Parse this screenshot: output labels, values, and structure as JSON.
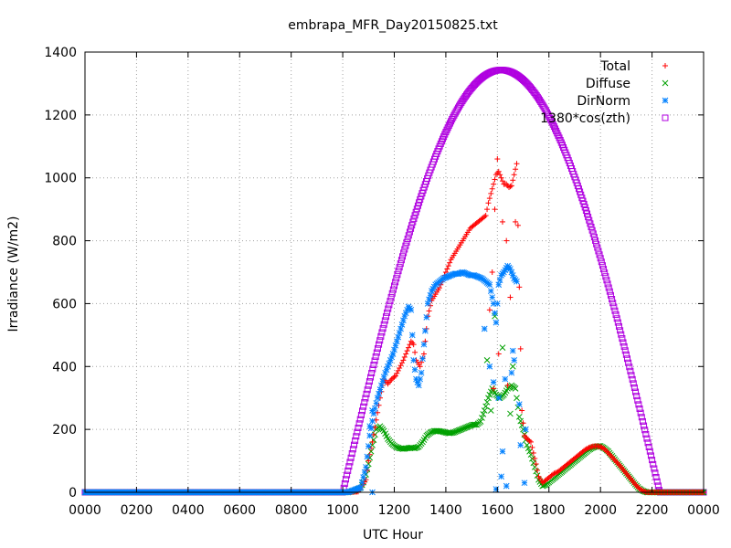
{
  "chart_data": {
    "type": "scatter",
    "title": "embrapa_MFR_Day20150825.txt",
    "xlabel": "UTC Hour",
    "ylabel": "Irradiance (W/m2)",
    "xlim": [
      0,
      24
    ],
    "ylim": [
      0,
      1400
    ],
    "x_ticks": [
      "0000",
      "0200",
      "0400",
      "0600",
      "0800",
      "1000",
      "1200",
      "1400",
      "1600",
      "1800",
      "2000",
      "2200",
      "0000"
    ],
    "y_ticks": [
      "0",
      "200",
      "400",
      "600",
      "800",
      "1000",
      "1200",
      "1400"
    ],
    "grid": true,
    "legend_position": "top-right",
    "series": [
      {
        "name": "Total",
        "marker": "plus",
        "color": "#ff0000",
        "points": [
          [
            0,
            0
          ],
          [
            10.2,
            0
          ],
          [
            10.6,
            2
          ],
          [
            10.9,
            40
          ],
          [
            11.0,
            100
          ],
          [
            11.15,
            160
          ],
          [
            11.3,
            230
          ],
          [
            11.45,
            300
          ],
          [
            11.6,
            360
          ],
          [
            11.75,
            345
          ],
          [
            11.9,
            360
          ],
          [
            12.05,
            370
          ],
          [
            12.2,
            395
          ],
          [
            12.35,
            420
          ],
          [
            12.5,
            450
          ],
          [
            12.65,
            480
          ],
          [
            12.75,
            470
          ],
          [
            12.85,
            420
          ],
          [
            13.0,
            400
          ],
          [
            13.15,
            440
          ],
          [
            13.3,
            560
          ],
          [
            13.45,
            610
          ],
          [
            13.6,
            630
          ],
          [
            13.75,
            650
          ],
          [
            13.9,
            680
          ],
          [
            14.05,
            710
          ],
          [
            14.2,
            740
          ],
          [
            14.35,
            760
          ],
          [
            14.5,
            780
          ],
          [
            14.65,
            800
          ],
          [
            14.8,
            820
          ],
          [
            14.95,
            840
          ],
          [
            15.1,
            850
          ],
          [
            15.25,
            860
          ],
          [
            15.4,
            870
          ],
          [
            15.55,
            880
          ],
          [
            15.65,
            920
          ],
          [
            15.75,
            950
          ],
          [
            15.85,
            980
          ],
          [
            15.95,
            1010
          ],
          [
            16.05,
            1020
          ],
          [
            16.15,
            1000
          ],
          [
            16.25,
            980
          ],
          [
            16.35,
            980
          ],
          [
            16.45,
            970
          ],
          [
            16.55,
            975
          ],
          [
            16.75,
            1045
          ],
          [
            16.95,
            260
          ],
          [
            17.05,
            180
          ],
          [
            17.15,
            170
          ],
          [
            17.3,
            160
          ],
          [
            17.5,
            90
          ],
          [
            17.6,
            50
          ],
          [
            17.75,
            30
          ],
          [
            17.9,
            40
          ],
          [
            18.05,
            50
          ],
          [
            18.2,
            60
          ],
          [
            18.35,
            65
          ],
          [
            18.5,
            75
          ],
          [
            18.65,
            85
          ],
          [
            18.8,
            95
          ],
          [
            18.95,
            105
          ],
          [
            19.1,
            115
          ],
          [
            19.25,
            125
          ],
          [
            19.4,
            135
          ],
          [
            19.55,
            142
          ],
          [
            19.7,
            146
          ],
          [
            19.85,
            147
          ],
          [
            20.0,
            145
          ],
          [
            20.15,
            138
          ],
          [
            20.3,
            125
          ],
          [
            20.45,
            112
          ],
          [
            20.6,
            98
          ],
          [
            20.75,
            85
          ],
          [
            20.9,
            70
          ],
          [
            21.05,
            55
          ],
          [
            21.2,
            40
          ],
          [
            21.35,
            25
          ],
          [
            21.5,
            12
          ],
          [
            21.65,
            4
          ],
          [
            21.8,
            0
          ],
          [
            24,
            0
          ]
        ],
        "outliers": [
          [
            16.0,
            1060
          ],
          [
            15.9,
            900
          ],
          [
            15.8,
            700
          ],
          [
            16.2,
            860
          ],
          [
            16.35,
            800
          ],
          [
            15.7,
            580
          ],
          [
            16.05,
            440
          ],
          [
            16.5,
            620
          ],
          [
            16.4,
            340
          ],
          [
            16.7,
            860
          ],
          [
            15.85,
            330
          ]
        ]
      },
      {
        "name": "Diffuse",
        "marker": "cross",
        "color": "#00a000",
        "points": [
          [
            0,
            0
          ],
          [
            10.2,
            0
          ],
          [
            10.5,
            5
          ],
          [
            10.7,
            15
          ],
          [
            10.85,
            40
          ],
          [
            11.0,
            90
          ],
          [
            11.15,
            150
          ],
          [
            11.3,
            200
          ],
          [
            11.45,
            210
          ],
          [
            11.6,
            195
          ],
          [
            11.75,
            170
          ],
          [
            11.9,
            155
          ],
          [
            12.05,
            145
          ],
          [
            12.2,
            140
          ],
          [
            12.35,
            138
          ],
          [
            12.5,
            140
          ],
          [
            12.65,
            142
          ],
          [
            12.8,
            140
          ],
          [
            12.95,
            145
          ],
          [
            13.1,
            160
          ],
          [
            13.25,
            180
          ],
          [
            13.4,
            190
          ],
          [
            13.55,
            195
          ],
          [
            13.7,
            195
          ],
          [
            13.85,
            193
          ],
          [
            14.0,
            190
          ],
          [
            14.15,
            188
          ],
          [
            14.3,
            190
          ],
          [
            14.45,
            195
          ],
          [
            14.6,
            200
          ],
          [
            14.75,
            205
          ],
          [
            14.9,
            210
          ],
          [
            15.05,
            215
          ],
          [
            15.2,
            215
          ],
          [
            15.35,
            225
          ],
          [
            15.5,
            260
          ],
          [
            15.65,
            300
          ],
          [
            15.8,
            330
          ],
          [
            15.95,
            310
          ],
          [
            16.1,
            300
          ],
          [
            16.25,
            310
          ],
          [
            16.4,
            330
          ],
          [
            16.55,
            340
          ],
          [
            16.7,
            330
          ],
          [
            16.85,
            240
          ],
          [
            17.0,
            200
          ],
          [
            17.15,
            150
          ],
          [
            17.3,
            120
          ],
          [
            17.45,
            80
          ],
          [
            17.6,
            40
          ],
          [
            17.75,
            20
          ],
          [
            17.9,
            25
          ],
          [
            18.05,
            35
          ],
          [
            18.2,
            45
          ],
          [
            18.35,
            55
          ],
          [
            18.5,
            65
          ],
          [
            18.65,
            75
          ],
          [
            18.8,
            85
          ],
          [
            18.95,
            95
          ],
          [
            19.1,
            105
          ],
          [
            19.25,
            115
          ],
          [
            19.4,
            125
          ],
          [
            19.55,
            135
          ],
          [
            19.7,
            142
          ],
          [
            19.85,
            146
          ],
          [
            20.0,
            147
          ],
          [
            20.15,
            140
          ],
          [
            20.3,
            130
          ],
          [
            20.45,
            115
          ],
          [
            20.6,
            100
          ],
          [
            20.75,
            85
          ],
          [
            20.9,
            70
          ],
          [
            21.05,
            55
          ],
          [
            21.2,
            40
          ],
          [
            21.35,
            25
          ],
          [
            21.5,
            12
          ],
          [
            21.65,
            4
          ],
          [
            21.8,
            0
          ],
          [
            24,
            0
          ]
        ],
        "outliers": [
          [
            15.6,
            420
          ],
          [
            15.9,
            560
          ],
          [
            16.2,
            460
          ],
          [
            16.6,
            400
          ],
          [
            16.5,
            250
          ],
          [
            15.75,
            260
          ]
        ]
      },
      {
        "name": "DirNorm",
        "marker": "star",
        "color": "#0080ff",
        "points": [
          [
            0,
            0
          ],
          [
            10.2,
            0
          ],
          [
            10.7,
            15
          ],
          [
            10.9,
            80
          ],
          [
            11.05,
            180
          ],
          [
            11.2,
            250
          ],
          [
            11.35,
            300
          ],
          [
            11.5,
            340
          ],
          [
            11.65,
            380
          ],
          [
            11.8,
            410
          ],
          [
            11.95,
            440
          ],
          [
            12.1,
            480
          ],
          [
            12.25,
            520
          ],
          [
            12.4,
            560
          ],
          [
            12.55,
            590
          ],
          [
            12.65,
            580
          ],
          [
            12.75,
            420
          ],
          [
            12.85,
            360
          ],
          [
            12.95,
            340
          ],
          [
            13.05,
            380
          ],
          [
            13.15,
            470
          ],
          [
            13.3,
            600
          ],
          [
            13.45,
            640
          ],
          [
            13.6,
            660
          ],
          [
            13.75,
            670
          ],
          [
            13.9,
            680
          ],
          [
            14.05,
            685
          ],
          [
            14.2,
            690
          ],
          [
            14.35,
            695
          ],
          [
            14.5,
            695
          ],
          [
            14.65,
            700
          ],
          [
            14.8,
            695
          ],
          [
            14.95,
            690
          ],
          [
            15.1,
            690
          ],
          [
            15.25,
            685
          ],
          [
            15.4,
            680
          ],
          [
            15.55,
            670
          ],
          [
            15.7,
            660
          ],
          [
            15.85,
            600
          ],
          [
            15.95,
            540
          ],
          [
            16.05,
            660
          ],
          [
            16.15,
            690
          ],
          [
            16.25,
            700
          ],
          [
            16.4,
            720
          ],
          [
            16.5,
            710
          ],
          [
            16.65,
            680
          ],
          [
            16.75,
            670
          ]
        ],
        "outliers": [
          [
            11.05,
            210
          ],
          [
            11.15,
            260
          ],
          [
            11.15,
            0
          ],
          [
            15.5,
            520
          ],
          [
            15.7,
            400
          ],
          [
            15.85,
            350
          ],
          [
            16.05,
            300
          ],
          [
            16.2,
            130
          ],
          [
            16.3,
            360
          ],
          [
            16.35,
            20
          ],
          [
            16.55,
            380
          ],
          [
            16.65,
            420
          ],
          [
            16.85,
            280
          ],
          [
            16.9,
            150
          ],
          [
            17.05,
            30
          ],
          [
            15.95,
            10
          ],
          [
            16.6,
            450
          ],
          [
            16.15,
            50
          ],
          [
            17.1,
            200
          ]
        ]
      },
      {
        "name": "1380*cos(zth)",
        "marker": "square",
        "color": "#b000e0",
        "curve": {
          "sunrise": 10.0,
          "sunset": 22.3,
          "peak": 1343
        }
      }
    ]
  }
}
